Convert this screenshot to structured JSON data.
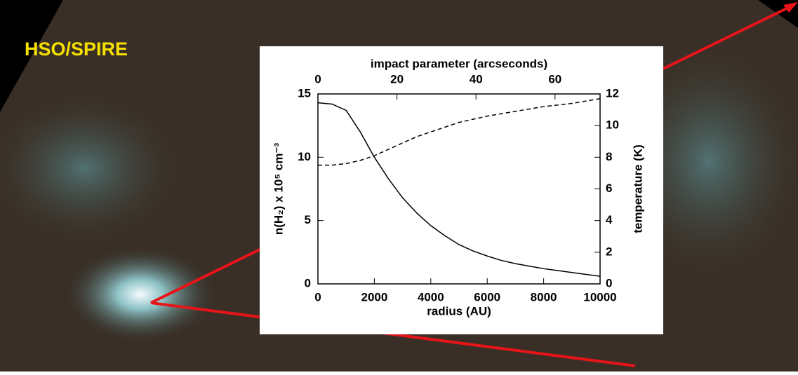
{
  "banner": "HSO/SPIRE",
  "chart_data": {
    "type": "line",
    "x_label": "radius (AU)",
    "x2_label": "impact parameter (arcseconds)",
    "y_label": "n(H₂) x 10⁵ cm⁻³",
    "y2_label": "temperature (K)",
    "x": [
      0,
      500,
      1000,
      1500,
      2000,
      2500,
      3000,
      3500,
      4000,
      4500,
      5000,
      5500,
      6000,
      6500,
      7000,
      7500,
      8000,
      8500,
      9000,
      9500,
      10000
    ],
    "series": [
      {
        "color": "#000000",
        "dashed": false,
        "values": [
          14.3,
          14.2,
          13.7,
          12.0,
          10.0,
          8.3,
          6.8,
          5.6,
          4.6,
          3.8,
          3.1,
          2.6,
          2.2,
          1.85,
          1.6,
          1.4,
          1.2,
          1.05,
          0.9,
          0.75,
          0.6
        ]
      },
      {
        "color": "#000000",
        "dashed": true,
        "axis": "y2",
        "values": [
          7.5,
          7.5,
          7.6,
          7.8,
          8.1,
          8.5,
          8.9,
          9.3,
          9.6,
          9.9,
          10.2,
          10.4,
          10.6,
          10.75,
          10.9,
          11.05,
          11.2,
          11.3,
          11.4,
          11.55,
          11.7
        ]
      }
    ],
    "xlim": [
      0,
      10000
    ],
    "xticks": [
      0,
      2000,
      4000,
      6000,
      8000,
      10000
    ],
    "x2lim": [
      0,
      71.4
    ],
    "x2ticks": [
      0,
      20,
      40,
      60
    ],
    "ylim": [
      0,
      15
    ],
    "yticks": [
      0,
      5,
      10,
      15
    ],
    "y2lim": [
      0,
      12
    ],
    "y2ticks": [
      0,
      2,
      4,
      6,
      8,
      10,
      12
    ]
  }
}
